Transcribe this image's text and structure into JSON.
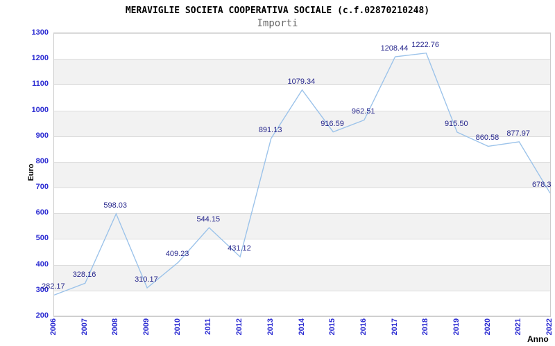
{
  "header": {
    "title": "MERAVIGLIE SOCIETA COOPERATIVA SOCIALE (c.f.02870210248)",
    "subtitle": "Importi"
  },
  "chart_data": {
    "type": "line",
    "title": "MERAVIGLIE SOCIETA COOPERATIVA SOCIALE (c.f.02870210248)",
    "subtitle": "Importi",
    "xlabel": "Anno",
    "ylabel": "Euro",
    "categories": [
      "2006",
      "2007",
      "2008",
      "2009",
      "2010",
      "2011",
      "2012",
      "2013",
      "2014",
      "2015",
      "2016",
      "2017",
      "2018",
      "2019",
      "2020",
      "2021",
      "2022"
    ],
    "values": [
      282.17,
      328.16,
      598.03,
      310.17,
      409.23,
      544.15,
      431.12,
      891.13,
      1079.34,
      916.59,
      962.51,
      1208.44,
      1222.76,
      915.5,
      860.58,
      877.97,
      678.3
    ],
    "point_labels": [
      "282.17",
      "328.16",
      "598.03",
      "310.17",
      "409.23",
      "544.15",
      "431.12",
      "891.13",
      "1079.34",
      "916.59",
      "962.51",
      "1208.44",
      "1222.76",
      "915.50",
      "860.58",
      "877.97",
      "678.3"
    ],
    "ylim": [
      200,
      1300
    ],
    "ytick_step": 100,
    "legend": "none",
    "grid": "horizontal-gridlines-with-alternating-bands",
    "colors": {
      "line": "#9cc3ea",
      "point_label": "#26268c",
      "axis_tick_label": "#2a2ad2",
      "axis_title": "#000000",
      "title": "#000000",
      "subtitle": "#666666",
      "band_fill": "#f2f2f2",
      "gridline": "#dcdcdc",
      "plot_border": "#cccccc",
      "background": "#ffffff"
    }
  }
}
